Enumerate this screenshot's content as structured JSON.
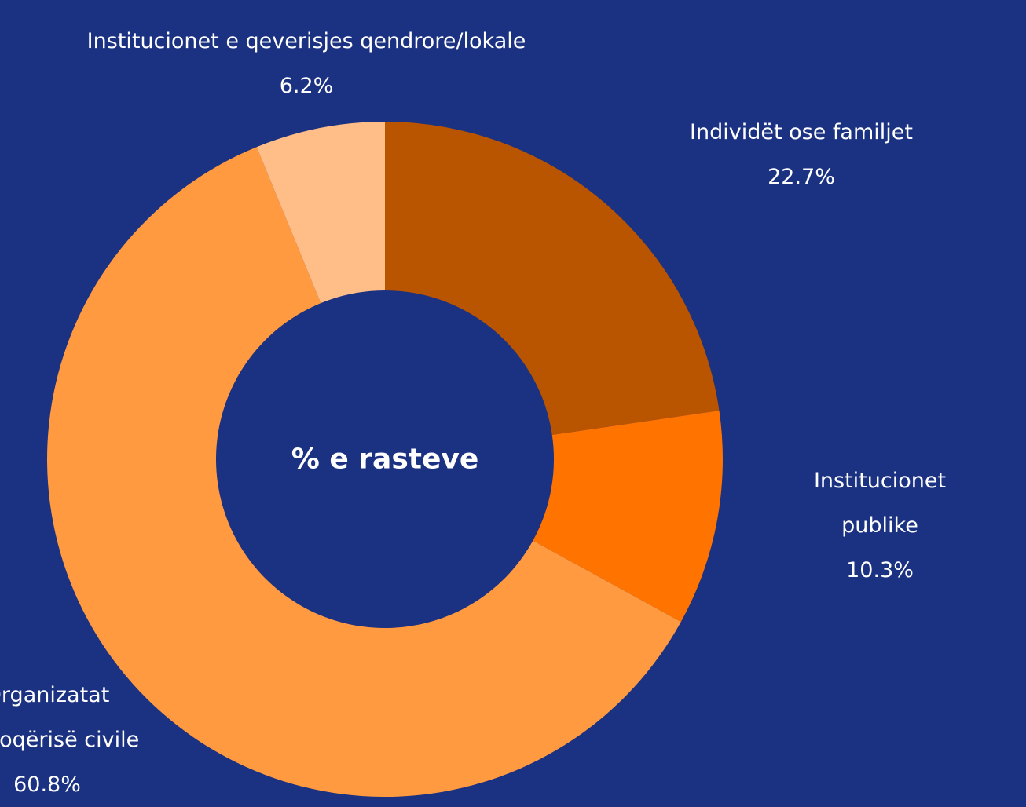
{
  "chart_data": {
    "type": "donut",
    "title": "% e rasteve",
    "categories": [
      "Individët ose familjet",
      "Institucionet publike",
      "Organizatat\ne shoqërisë civile",
      "Institucionet e qeverisjes qendrore/lokale"
    ],
    "values": [
      22.7,
      10.3,
      60.8,
      6.2
    ],
    "value_labels": [
      "22.7%",
      "10.3%",
      "60.8%",
      "6.2%"
    ],
    "colors": [
      "#b95400",
      "#ff7300",
      "#ff9a40",
      "#ffbe87"
    ]
  }
}
